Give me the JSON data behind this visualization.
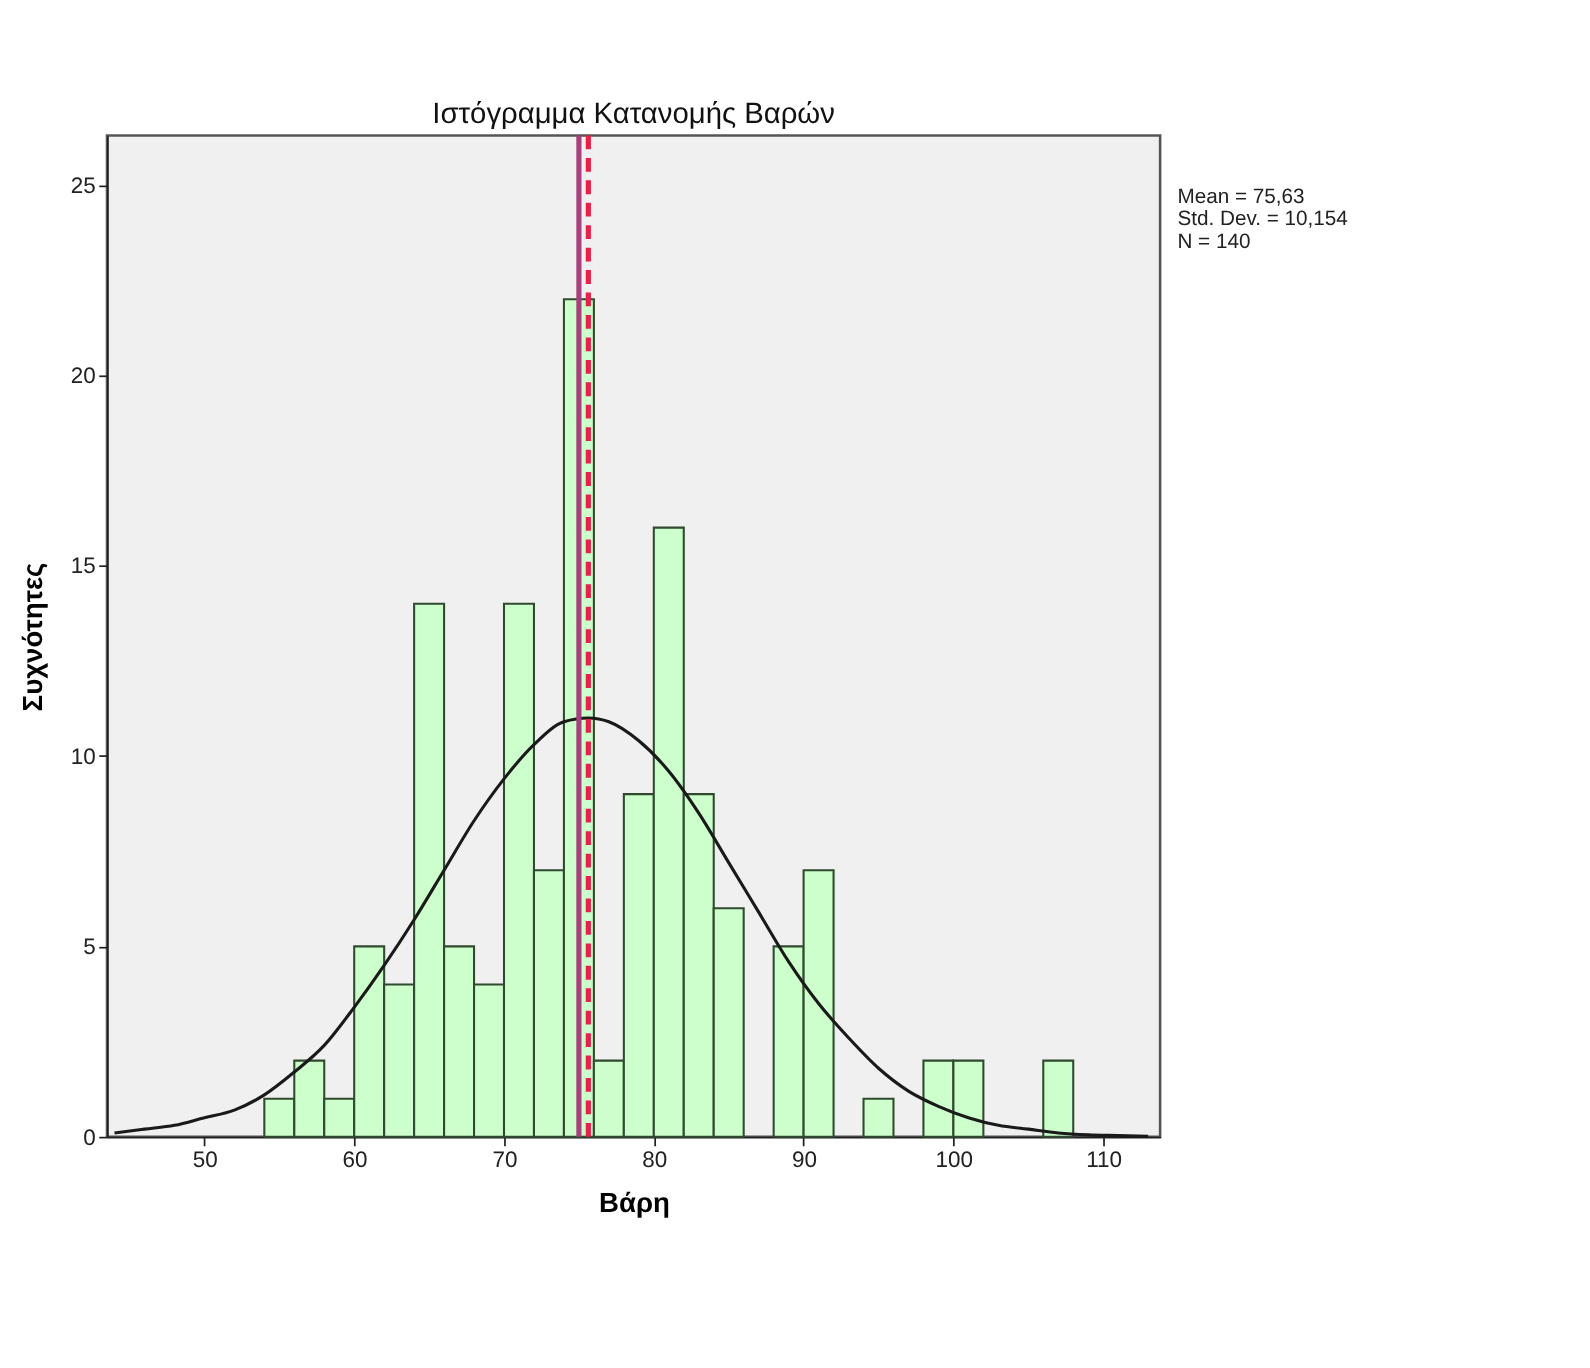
{
  "chart_data": {
    "type": "histogram",
    "title": "Ιστόγραμμα Κατανομής Βαρών",
    "xlabel": "Βάρη",
    "ylabel": "Συχνότητες",
    "bins": [
      54,
      56,
      58,
      60,
      62,
      64,
      66,
      68,
      70,
      72,
      74,
      76,
      78,
      80,
      82,
      84,
      86,
      88,
      90,
      92,
      94,
      96,
      98,
      100,
      102,
      104,
      106,
      108
    ],
    "values": [
      1,
      2,
      1,
      5,
      4,
      14,
      5,
      4,
      14,
      7,
      22,
      2,
      9,
      16,
      9,
      6,
      0,
      5,
      7,
      0,
      1,
      0,
      2,
      2,
      0,
      0,
      2
    ],
    "color": "#ccffcc",
    "series": [
      {
        "type": "line",
        "color": "#1a1a1a",
        "x": [
          44,
          46,
          48,
          50,
          52,
          54,
          56,
          58,
          60,
          62,
          64,
          66,
          68,
          70,
          72,
          74,
          75.63,
          77,
          79,
          81,
          83,
          85,
          87,
          89,
          91,
          93,
          95,
          97,
          99,
          101,
          103,
          105,
          107,
          109,
          111,
          113
        ],
        "values": [
          0.1,
          0.2,
          0.3,
          0.5,
          0.7,
          1.1,
          1.7,
          2.4,
          3.4,
          4.5,
          5.7,
          7.0,
          8.3,
          9.4,
          10.3,
          10.9,
          11.0,
          10.9,
          10.4,
          9.6,
          8.5,
          7.2,
          5.9,
          4.6,
          3.5,
          2.6,
          1.8,
          1.2,
          0.8,
          0.5,
          0.3,
          0.2,
          0.1,
          0.05,
          0.03,
          0.01
        ]
      }
    ],
    "ref_lines": [
      {
        "axis": "x",
        "value": 75,
        "color": "#a8407c",
        "line_style": "solid"
      },
      {
        "axis": "x",
        "value": 75.63,
        "color": "#e8204a",
        "line_style": "dashed"
      }
    ],
    "annotations": [
      "Mean = 75,63",
      "Std. Dev. = 10,154",
      "N = 140"
    ],
    "xlim": [
      43.5,
      113.8
    ],
    "xticks": [
      50,
      60,
      70,
      80,
      90,
      100,
      110
    ],
    "ylim": [
      0,
      26.3
    ],
    "yticks": [
      0,
      5,
      10,
      15,
      20,
      25
    ],
    "grid": false
  }
}
